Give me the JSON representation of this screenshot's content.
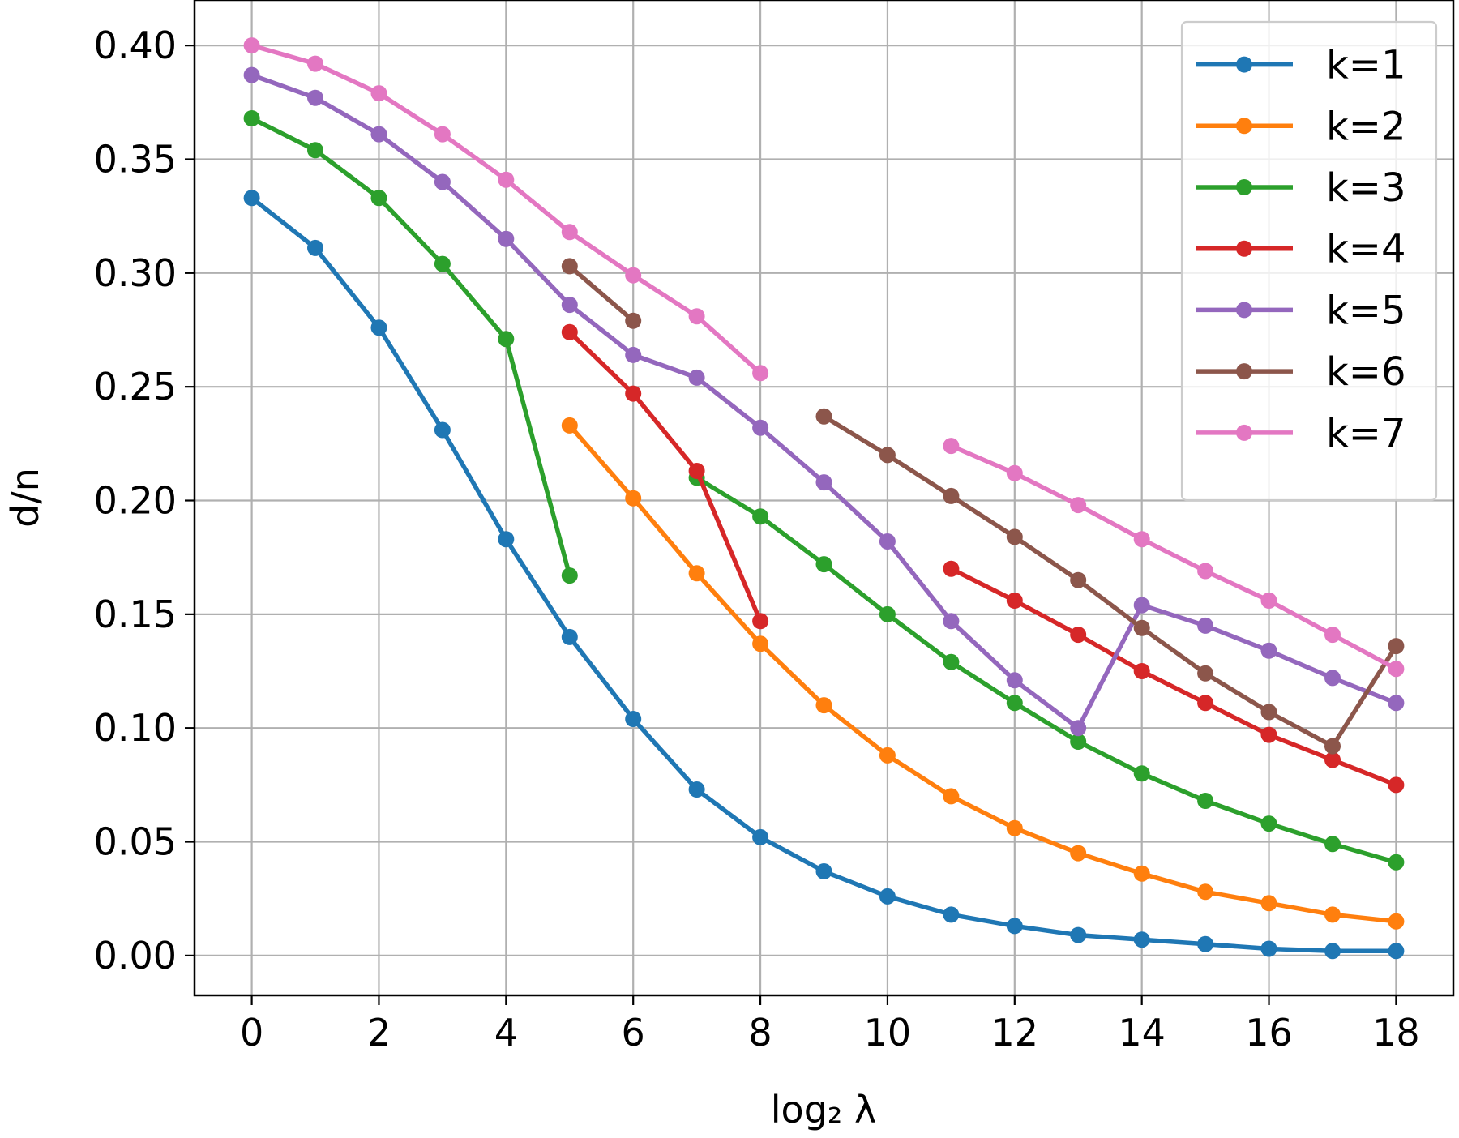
{
  "chart_data": {
    "type": "line",
    "xlabel": "log₂ λ",
    "ylabel": "d/n",
    "xlim": [
      -0.9,
      18.9
    ],
    "ylim": [
      -0.0175,
      0.42
    ],
    "x_ticks": [
      0,
      2,
      4,
      6,
      8,
      10,
      12,
      14,
      16,
      18
    ],
    "x_tick_labels": [
      "0",
      "2",
      "4",
      "6",
      "8",
      "10",
      "12",
      "14",
      "16",
      "18"
    ],
    "y_ticks": [
      0.0,
      0.05,
      0.1,
      0.15,
      0.2,
      0.25,
      0.3,
      0.35,
      0.4
    ],
    "y_tick_labels": [
      "0.00",
      "0.05",
      "0.10",
      "0.15",
      "0.20",
      "0.25",
      "0.30",
      "0.35",
      "0.40"
    ],
    "grid": true,
    "legend_position": "top-right",
    "series": [
      {
        "name": "k=1",
        "color": "#1f77b4",
        "segments": [
          [
            [
              0,
              0.333
            ],
            [
              1,
              0.311
            ],
            [
              2,
              0.276
            ],
            [
              3,
              0.231
            ],
            [
              4,
              0.183
            ],
            [
              5,
              0.14
            ],
            [
              6,
              0.104
            ],
            [
              7,
              0.073
            ],
            [
              8,
              0.052
            ],
            [
              9,
              0.037
            ],
            [
              10,
              0.026
            ],
            [
              11,
              0.018
            ],
            [
              12,
              0.013
            ],
            [
              13,
              0.009
            ],
            [
              14,
              0.007
            ],
            [
              15,
              0.005
            ],
            [
              16,
              0.003
            ],
            [
              17,
              0.002
            ],
            [
              18,
              0.002
            ]
          ]
        ]
      },
      {
        "name": "k=2",
        "color": "#ff7f0e",
        "segments": [
          [
            [
              5,
              0.233
            ],
            [
              6,
              0.201
            ],
            [
              7,
              0.168
            ],
            [
              8,
              0.137
            ],
            [
              9,
              0.11
            ],
            [
              10,
              0.088
            ],
            [
              11,
              0.07
            ],
            [
              12,
              0.056
            ],
            [
              13,
              0.045
            ],
            [
              14,
              0.036
            ],
            [
              15,
              0.028
            ],
            [
              16,
              0.023
            ],
            [
              17,
              0.018
            ],
            [
              18,
              0.015
            ]
          ]
        ]
      },
      {
        "name": "k=3",
        "color": "#2ca02c",
        "segments": [
          [
            [
              0,
              0.368
            ],
            [
              1,
              0.354
            ],
            [
              2,
              0.333
            ],
            [
              3,
              0.304
            ],
            [
              4,
              0.271
            ],
            [
              5,
              0.167
            ]
          ],
          [
            [
              7,
              0.21
            ],
            [
              8,
              0.193
            ],
            [
              9,
              0.172
            ],
            [
              10,
              0.15
            ],
            [
              11,
              0.129
            ],
            [
              12,
              0.111
            ],
            [
              13,
              0.094
            ],
            [
              14,
              0.08
            ],
            [
              15,
              0.068
            ],
            [
              16,
              0.058
            ],
            [
              17,
              0.049
            ],
            [
              18,
              0.041
            ]
          ]
        ]
      },
      {
        "name": "k=4",
        "color": "#d62728",
        "segments": [
          [
            [
              5,
              0.274
            ],
            [
              6,
              0.247
            ],
            [
              7,
              0.213
            ],
            [
              8,
              0.147
            ]
          ],
          [
            [
              11,
              0.17
            ],
            [
              12,
              0.156
            ],
            [
              13,
              0.141
            ],
            [
              14,
              0.125
            ],
            [
              15,
              0.111
            ],
            [
              16,
              0.097
            ],
            [
              17,
              0.086
            ],
            [
              18,
              0.075
            ]
          ]
        ]
      },
      {
        "name": "k=5",
        "color": "#9467bd",
        "segments": [
          [
            [
              0,
              0.387
            ],
            [
              1,
              0.377
            ],
            [
              2,
              0.361
            ],
            [
              3,
              0.34
            ],
            [
              4,
              0.315
            ],
            [
              5,
              0.286
            ],
            [
              6,
              0.264
            ],
            [
              7,
              0.254
            ],
            [
              8,
              0.232
            ],
            [
              9,
              0.208
            ],
            [
              10,
              0.182
            ],
            [
              11,
              0.147
            ],
            [
              12,
              0.121
            ],
            [
              13,
              0.1
            ],
            [
              14,
              0.154
            ],
            [
              15,
              0.145
            ],
            [
              16,
              0.134
            ],
            [
              17,
              0.122
            ],
            [
              18,
              0.111
            ]
          ]
        ]
      },
      {
        "name": "k=6",
        "color": "#8c564b",
        "segments": [
          [
            [
              5,
              0.303
            ],
            [
              6,
              0.279
            ]
          ],
          [
            [
              9,
              0.237
            ],
            [
              10,
              0.22
            ],
            [
              11,
              0.202
            ],
            [
              12,
              0.184
            ],
            [
              13,
              0.165
            ],
            [
              14,
              0.144
            ],
            [
              15,
              0.124
            ],
            [
              16,
              0.107
            ],
            [
              17,
              0.092
            ],
            [
              18,
              0.136
            ]
          ]
        ]
      },
      {
        "name": "k=7",
        "color": "#e377c2",
        "segments": [
          [
            [
              0,
              0.4
            ],
            [
              1,
              0.392
            ],
            [
              2,
              0.379
            ],
            [
              3,
              0.361
            ],
            [
              4,
              0.341
            ],
            [
              5,
              0.318
            ],
            [
              6,
              0.299
            ],
            [
              7,
              0.281
            ],
            [
              8,
              0.256
            ]
          ],
          [
            [
              11,
              0.224
            ],
            [
              12,
              0.212
            ],
            [
              13,
              0.198
            ],
            [
              14,
              0.183
            ],
            [
              15,
              0.169
            ],
            [
              16,
              0.156
            ],
            [
              17,
              0.141
            ],
            [
              18,
              0.126
            ]
          ]
        ]
      }
    ]
  }
}
